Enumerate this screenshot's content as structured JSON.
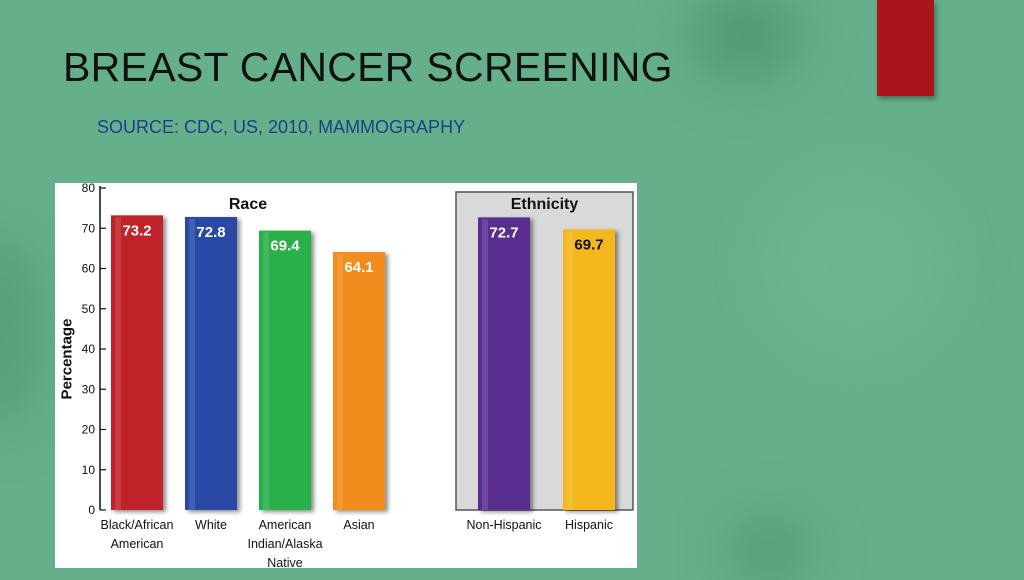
{
  "slide": {
    "title": "BREAST CANCER SCREENING",
    "subtitle": "SOURCE:  CDC, US,  2010, MAMMOGRAPHY",
    "accent_red": "#a8151a",
    "subtitle_color": "#1c3f8a"
  },
  "chart_data": {
    "type": "bar",
    "ylabel": "Percentage",
    "ylim": [
      0,
      80
    ],
    "yticks": [
      0,
      10,
      20,
      30,
      40,
      50,
      60,
      70,
      80
    ],
    "grid": false,
    "groups": [
      {
        "name": "Race",
        "categories": [
          "Black/African American",
          "White",
          "American Indian/Alaska Native",
          "Asian"
        ],
        "values": [
          73.2,
          72.8,
          69.4,
          64.1
        ]
      },
      {
        "name": "Ethnicity",
        "categories": [
          "Non-Hispanic",
          "Hispanic"
        ],
        "values": [
          72.7,
          69.7
        ]
      }
    ],
    "category_label_lines": [
      [
        "Black/African",
        "American"
      ],
      [
        "White"
      ],
      [
        "American",
        "Indian/Alaska",
        "Native"
      ],
      [
        "Asian"
      ],
      [
        "Non-Hispanic"
      ],
      [
        "Hispanic"
      ]
    ],
    "value_labels": [
      "73.2",
      "72.8",
      "69.4",
      "64.1",
      "72.7",
      "69.7"
    ],
    "colors": [
      "#c0202a",
      "#2a4aa6",
      "#2ab04a",
      "#f28c1e",
      "#5a2e91",
      "#f4b81a"
    ],
    "label_text_colors": [
      "#ffffff",
      "#ffffff",
      "#ffffff",
      "#ffffff",
      "#ffffff",
      "#111111"
    ]
  }
}
